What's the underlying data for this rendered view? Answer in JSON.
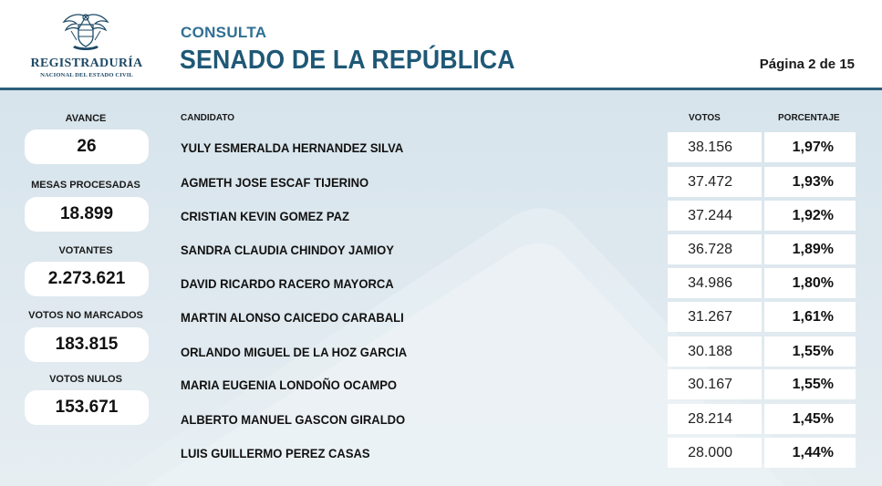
{
  "logo": {
    "name": "REGISTRADURÍA",
    "subtitle": "NACIONAL DEL ESTADO CIVIL"
  },
  "header": {
    "eyebrow": "CONSULTA",
    "title": "SENADO DE LA REPÚBLICA",
    "page_indicator": "Página 2 de 15"
  },
  "colors": {
    "brand_dark": "#1f5876",
    "brand_light": "#2f6f94",
    "panel_bg": "#dbe6ed"
  },
  "stats": [
    {
      "label": "AVANCE",
      "value": "26"
    },
    {
      "label": "MESAS PROCESADAS",
      "value": "18.899"
    },
    {
      "label": "VOTANTES",
      "value": "2.273.621"
    },
    {
      "label": "VOTOS NO MARCADOS",
      "value": "183.815"
    },
    {
      "label": "VOTOS NULOS",
      "value": "153.671"
    }
  ],
  "table": {
    "columns": {
      "candidate": "CANDIDATO",
      "votes": "VOTOS",
      "percent": "PORCENTAJE"
    },
    "rows": [
      {
        "name": "YULY ESMERALDA HERNANDEZ SILVA",
        "votes": "38.156",
        "percent": "1,97%"
      },
      {
        "name": "AGMETH JOSE ESCAF TIJERINO",
        "votes": "37.472",
        "percent": "1,93%"
      },
      {
        "name": "CRISTIAN KEVIN GOMEZ PAZ",
        "votes": "37.244",
        "percent": "1,92%"
      },
      {
        "name": "SANDRA CLAUDIA CHINDOY JAMIOY",
        "votes": "36.728",
        "percent": "1,89%"
      },
      {
        "name": "DAVID RICARDO RACERO MAYORCA",
        "votes": "34.986",
        "percent": "1,80%"
      },
      {
        "name": "MARTIN ALONSO CAICEDO CARABALI",
        "votes": "31.267",
        "percent": "1,61%"
      },
      {
        "name": "ORLANDO MIGUEL DE LA HOZ GARCIA",
        "votes": "30.188",
        "percent": "1,55%"
      },
      {
        "name": "MARIA EUGENIA LONDOÑO OCAMPO",
        "votes": "30.167",
        "percent": "1,55%"
      },
      {
        "name": "ALBERTO MANUEL GASCON GIRALDO",
        "votes": "28.214",
        "percent": "1,45%"
      },
      {
        "name": "LUIS GUILLERMO PEREZ CASAS",
        "votes": "28.000",
        "percent": "1,44%"
      }
    ]
  }
}
